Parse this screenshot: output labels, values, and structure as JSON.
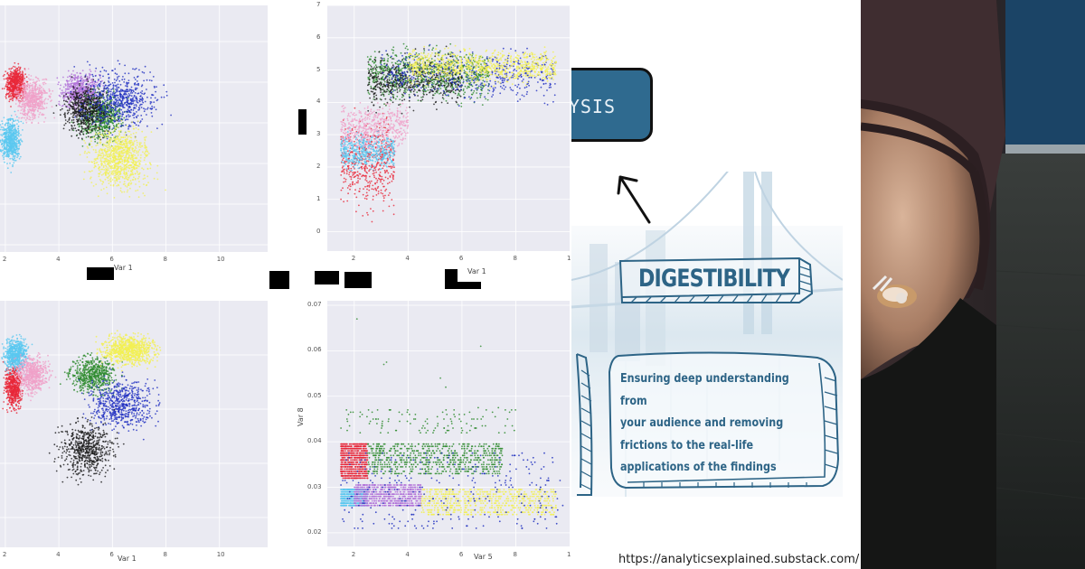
{
  "chart_data": [
    {
      "type": "scatter",
      "id": "top-left",
      "title": "",
      "xlabel": "Var 1",
      "ylabel": "",
      "xticks": [
        "2",
        "4",
        "6",
        "8",
        "10"
      ],
      "yticks": [],
      "xlim": [
        1.8,
        11.8
      ],
      "grid": true,
      "series": [
        {
          "name": "red",
          "color": "#e8283a",
          "x_range": [
            1.8,
            3.5
          ],
          "y_center": "upper-left"
        },
        {
          "name": "pink",
          "color": "#f0a0c8",
          "x_range": [
            1.8,
            4.5
          ],
          "y_center": "upper-left"
        },
        {
          "name": "light-blue",
          "color": "#5ac8f0",
          "x_range": [
            1.8,
            3.5
          ],
          "y_center": "middle-left"
        },
        {
          "name": "purple",
          "color": "#b070d8",
          "x_range": [
            2.5,
            5.5
          ],
          "y_center": "upper-middle"
        },
        {
          "name": "green",
          "color": "#2e8b2e",
          "x_range": [
            3,
            7.5
          ],
          "y_center": "middle"
        },
        {
          "name": "black",
          "color": "#1a1a1a",
          "x_range": [
            2.5,
            7
          ],
          "y_center": "middle"
        },
        {
          "name": "blue",
          "color": "#2030c0",
          "x_range": [
            3,
            11.5
          ],
          "y_center": "upper-middle"
        },
        {
          "name": "yellow",
          "color": "#f2f050",
          "x_range": [
            3.5,
            9.5
          ],
          "y_center": "lower-middle"
        }
      ]
    },
    {
      "type": "scatter",
      "id": "top-right",
      "title": "",
      "xlabel": "Var 1",
      "ylabel": "",
      "xticks": [
        "2",
        "4",
        "6",
        "8",
        "1"
      ],
      "yticks": [
        "0",
        "1",
        "2",
        "3",
        "4",
        "5",
        "6",
        "7"
      ],
      "xlim": [
        1,
        10
      ],
      "ylim": [
        -0.6,
        7
      ],
      "grid": true,
      "series": [
        {
          "name": "red",
          "color": "#e8283a",
          "x_range": [
            1.5,
            3.5
          ],
          "y_range": [
            -0.2,
            4.5
          ]
        },
        {
          "name": "light-blue",
          "color": "#5ac8f0",
          "x_range": [
            1.5,
            3.5
          ],
          "y_range": [
            1.5,
            3.5
          ]
        },
        {
          "name": "pink",
          "color": "#f0a0c8",
          "x_range": [
            1.5,
            4
          ],
          "y_range": [
            2,
            4.5
          ]
        },
        {
          "name": "green",
          "color": "#2e8b2e",
          "x_range": [
            2.5,
            7
          ],
          "y_range": [
            3.5,
            6.2
          ]
        },
        {
          "name": "black",
          "color": "#1a1a1a",
          "x_range": [
            2.5,
            6
          ],
          "y_range": [
            3.3,
            6
          ]
        },
        {
          "name": "blue",
          "color": "#2030c0",
          "x_range": [
            3,
            9.5
          ],
          "y_range": [
            3.5,
            6.2
          ]
        },
        {
          "name": "yellow",
          "color": "#f2f050",
          "x_range": [
            4,
            9.5
          ],
          "y_range": [
            4.2,
            6
          ]
        }
      ]
    },
    {
      "type": "scatter",
      "id": "bottom-left",
      "title": "",
      "xlabel": "Var 1",
      "ylabel": "",
      "xticks": [
        "2",
        "4",
        "6",
        "8",
        "10"
      ],
      "yticks": [],
      "xlim": [
        1.8,
        11.8
      ],
      "grid": true,
      "series": [
        {
          "name": "red",
          "color": "#e8283a",
          "x_range": [
            1.8,
            3.2
          ],
          "y_center": "upper"
        },
        {
          "name": "light-blue",
          "color": "#5ac8f0",
          "x_range": [
            1.8,
            3.5
          ],
          "y_center": "upper"
        },
        {
          "name": "pink",
          "color": "#f0a0c8",
          "x_range": [
            1.8,
            4.5
          ],
          "y_center": "upper"
        },
        {
          "name": "green",
          "color": "#2e8b2e",
          "x_range": [
            3,
            7
          ],
          "y_center": "upper"
        },
        {
          "name": "yellow",
          "color": "#f2f050",
          "x_range": [
            3.5,
            9
          ],
          "y_center": "upper"
        },
        {
          "name": "blue",
          "color": "#2030c0",
          "x_range": [
            3.5,
            10.5
          ],
          "y_center": "middle"
        },
        {
          "name": "black",
          "color": "#1a1a1a",
          "x_range": [
            2.5,
            8
          ],
          "y_center": "lower"
        }
      ]
    },
    {
      "type": "scatter",
      "id": "bottom-right",
      "title": "",
      "xlabel": "Var 5",
      "ylabel": "Var 8",
      "xticks": [
        "2",
        "4",
        "6",
        "8",
        "1"
      ],
      "yticks": [
        "0.02",
        "0.03",
        "0.04",
        "0.05",
        "0.06",
        "0.07"
      ],
      "xlim": [
        1,
        10
      ],
      "ylim": [
        0.017,
        0.071
      ],
      "grid": true,
      "series": [
        {
          "name": "red",
          "color": "#e8283a",
          "x_range": [
            1.5,
            2.5
          ],
          "y_range": [
            0.032,
            0.04
          ]
        },
        {
          "name": "green",
          "color": "#2e8b2e",
          "x_range": [
            2.5,
            7.5
          ],
          "y_range": [
            0.033,
            0.04
          ]
        },
        {
          "name": "light-blue",
          "color": "#5ac8f0",
          "x_range": [
            1.5,
            2.5
          ],
          "y_range": [
            0.026,
            0.03
          ]
        },
        {
          "name": "purple",
          "color": "#b070d8",
          "x_range": [
            2,
            4.5
          ],
          "y_range": [
            0.026,
            0.031
          ]
        },
        {
          "name": "yellow",
          "color": "#f2f050",
          "x_range": [
            4.5,
            9.5
          ],
          "y_range": [
            0.024,
            0.03
          ]
        },
        {
          "name": "blue",
          "color": "#2030c0",
          "x_range": [
            1.5,
            9.8
          ],
          "y_range": [
            0.021,
            0.038
          ]
        },
        {
          "name": "outliers-green",
          "color": "#2e8b2e",
          "x_range": [
            1.5,
            8
          ],
          "y_range": [
            0.042,
            0.048
          ]
        }
      ],
      "annotations": [
        "outliers near 0.067 (x≈2.1), 0.061 (x≈6.7), 0.057 (x≈3.1)"
      ]
    }
  ],
  "infographic": {
    "analysis_box_text": "YSIS",
    "banner_title": "DIGESTIBILITY",
    "description": "Ensuring deep understanding from your audience and removing frictions to the real-life applications of the findings",
    "description_lines": [
      "Ensuring deep understanding from",
      "your audience and removing",
      "frictions to the real-life",
      "applications of the findings"
    ],
    "url": "https://analyticsexplained.substack.com/",
    "accent_color": "#2d6486",
    "box_color": "#2f6a8f"
  },
  "photo": {
    "description": "close-up of a clenched hand with rings and a dark knit sleeve on a dark wooden surface"
  }
}
